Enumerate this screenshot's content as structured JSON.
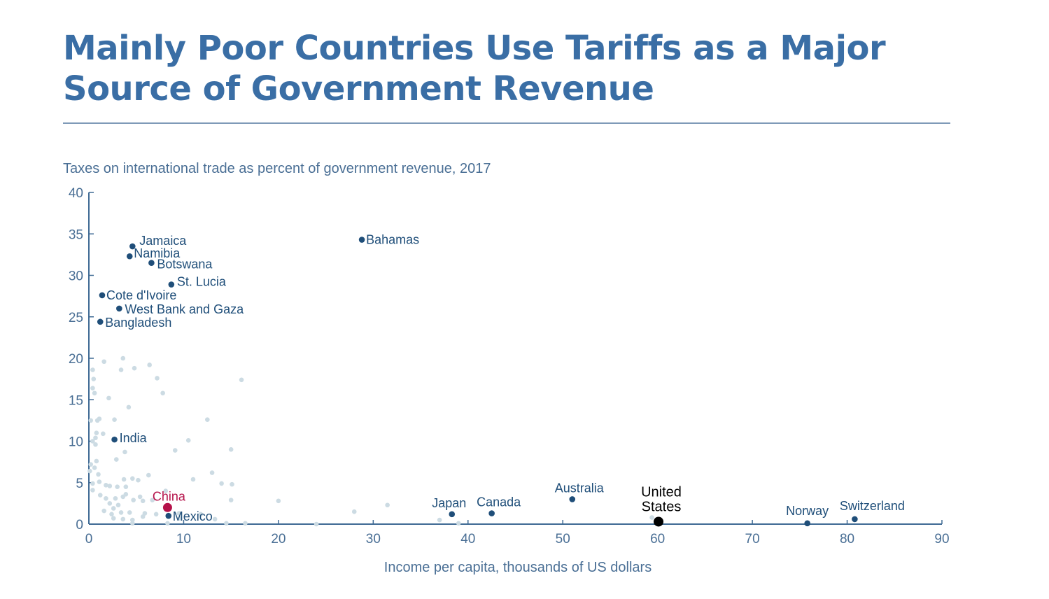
{
  "title": "Mainly Poor Countries Use Tariffs as a Major Source of Government Revenue",
  "chart_data": {
    "type": "scatter",
    "subtitle": "Taxes on international trade as percent of government revenue, 2017",
    "xlabel": "Income per capita, thousands of US dollars",
    "ylabel": "",
    "xlim": [
      0,
      90
    ],
    "ylim": [
      0,
      40
    ],
    "xticks": [
      0,
      10,
      20,
      30,
      40,
      50,
      60,
      70,
      80,
      90
    ],
    "yticks": [
      0,
      5,
      10,
      15,
      20,
      25,
      30,
      35,
      40
    ],
    "grid": false,
    "colors": {
      "labeled": "#1f4e79",
      "highlight_china": "#b5124a",
      "highlight_us": "#000000",
      "background_points": "#ccdbe3"
    },
    "labeled_points": [
      {
        "label": "Jamaica",
        "x": 4.6,
        "y": 33.5,
        "color": "labeled"
      },
      {
        "label": "Namibia",
        "x": 4.3,
        "y": 32.3,
        "color": "labeled"
      },
      {
        "label": "Botswana",
        "x": 6.6,
        "y": 31.5,
        "color": "labeled"
      },
      {
        "label": "St. Lucia",
        "x": 8.7,
        "y": 28.9,
        "color": "labeled"
      },
      {
        "label": "Cote d'Ivoire",
        "x": 1.4,
        "y": 27.6,
        "color": "labeled"
      },
      {
        "label": "West Bank and Gaza",
        "x": 3.2,
        "y": 26.0,
        "color": "labeled"
      },
      {
        "label": "Bangladesh",
        "x": 1.2,
        "y": 24.4,
        "color": "labeled"
      },
      {
        "label": "Bahamas",
        "x": 28.8,
        "y": 34.3,
        "color": "labeled"
      },
      {
        "label": "India",
        "x": 2.7,
        "y": 10.2,
        "color": "labeled"
      },
      {
        "label": "China",
        "x": 8.3,
        "y": 2.0,
        "color": "highlight_china"
      },
      {
        "label": "Mexico",
        "x": 8.4,
        "y": 1.0,
        "color": "labeled"
      },
      {
        "label": "Japan",
        "x": 38.3,
        "y": 1.2,
        "color": "labeled"
      },
      {
        "label": "Canada",
        "x": 42.5,
        "y": 1.3,
        "color": "labeled"
      },
      {
        "label": "Australia",
        "x": 51.0,
        "y": 3.0,
        "color": "labeled"
      },
      {
        "label": "United States",
        "x": 60.1,
        "y": 0.3,
        "color": "highlight_us"
      },
      {
        "label": "Norway",
        "x": 75.8,
        "y": 0.1,
        "color": "labeled"
      },
      {
        "label": "Switzerland",
        "x": 80.8,
        "y": 0.6,
        "color": "labeled"
      }
    ],
    "unlabeled_points": [
      [
        0.4,
        18.6
      ],
      [
        0.5,
        17.5
      ],
      [
        0.4,
        16.4
      ],
      [
        0.6,
        15.8
      ],
      [
        1.6,
        19.6
      ],
      [
        3.6,
        20.0
      ],
      [
        3.4,
        18.6
      ],
      [
        4.8,
        18.8
      ],
      [
        6.4,
        19.2
      ],
      [
        7.2,
        17.6
      ],
      [
        7.8,
        15.8
      ],
      [
        16.1,
        17.4
      ],
      [
        2.1,
        15.2
      ],
      [
        4.2,
        14.1
      ],
      [
        0.2,
        12.5
      ],
      [
        0.9,
        12.5
      ],
      [
        1.1,
        12.7
      ],
      [
        2.7,
        12.6
      ],
      [
        12.5,
        12.6
      ],
      [
        0.8,
        11.0
      ],
      [
        1.5,
        10.9
      ],
      [
        0.7,
        10.4
      ],
      [
        0.4,
        10.0
      ],
      [
        0.7,
        9.6
      ],
      [
        10.5,
        10.1
      ],
      [
        15.0,
        9.0
      ],
      [
        9.1,
        8.9
      ],
      [
        3.8,
        8.7
      ],
      [
        2.9,
        7.8
      ],
      [
        0.8,
        7.6
      ],
      [
        0.2,
        7.2
      ],
      [
        0.6,
        6.8
      ],
      [
        0.1,
        6.4
      ],
      [
        1.0,
        6.0
      ],
      [
        6.3,
        5.9
      ],
      [
        13.0,
        6.2
      ],
      [
        11.0,
        5.4
      ],
      [
        3.7,
        5.4
      ],
      [
        4.6,
        5.5
      ],
      [
        5.2,
        5.3
      ],
      [
        1.1,
        5.1
      ],
      [
        0.4,
        4.9
      ],
      [
        1.8,
        4.7
      ],
      [
        2.2,
        4.6
      ],
      [
        14.0,
        4.9
      ],
      [
        15.1,
        4.8
      ],
      [
        3.0,
        4.5
      ],
      [
        3.9,
        4.5
      ],
      [
        0.4,
        4.1
      ],
      [
        8.1,
        4.0
      ],
      [
        3.9,
        3.6
      ],
      [
        1.2,
        3.5
      ],
      [
        3.6,
        3.3
      ],
      [
        5.4,
        3.3
      ],
      [
        2.8,
        3.1
      ],
      [
        1.8,
        3.1
      ],
      [
        5.7,
        2.8
      ],
      [
        4.7,
        2.9
      ],
      [
        15.0,
        2.9
      ],
      [
        20.0,
        2.8
      ],
      [
        6.7,
        2.9
      ],
      [
        2.2,
        2.5
      ],
      [
        3.1,
        2.3
      ],
      [
        31.5,
        2.3
      ],
      [
        8.4,
        2.2
      ],
      [
        2.6,
        1.9
      ],
      [
        1.6,
        1.6
      ],
      [
        5.9,
        1.3
      ],
      [
        3.4,
        1.4
      ],
      [
        4.3,
        1.4
      ],
      [
        2.4,
        1.2
      ],
      [
        7.1,
        1.2
      ],
      [
        9.5,
        1.3
      ],
      [
        11.8,
        1.2
      ],
      [
        28.0,
        1.5
      ],
      [
        5.7,
        0.9
      ],
      [
        2.6,
        0.7
      ],
      [
        3.6,
        0.6
      ],
      [
        4.6,
        0.5
      ],
      [
        9.6,
        0.7
      ],
      [
        13.3,
        0.6
      ],
      [
        37.0,
        0.5
      ],
      [
        59.4,
        0.8
      ],
      [
        4.6,
        0.1
      ],
      [
        8.3,
        0.1
      ],
      [
        14.5,
        0.1
      ],
      [
        16.5,
        0.1
      ],
      [
        24.0,
        0.0
      ],
      [
        39.0,
        0.1
      ]
    ]
  }
}
